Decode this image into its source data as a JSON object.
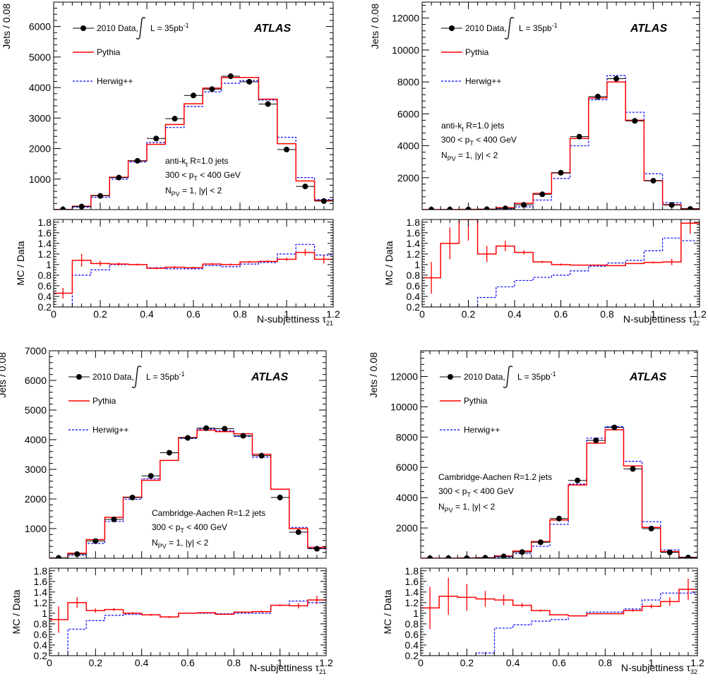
{
  "page": {
    "bg": "#ffffff"
  },
  "colors": {
    "data": "#000000",
    "pythia": "#ff0000",
    "herwig": "#0000ff"
  },
  "labels": {
    "atlas": "ATLAS",
    "data_legend_prefix": "2010 Data,",
    "data_legend_lumi": "L = 35pb",
    "data_legend_lumi_sup": "-1",
    "pythia": "Pythia",
    "herwig": "Herwig++",
    "jets_axis": "Jets / 0.08",
    "ratio_axis": "MC / Data",
    "x_axis_prefix": "N-subjettiness τ",
    "pt_pre": "300 < p",
    "pt_sub": "T",
    "pt_post": " < 400 GeV",
    "npv_pre": "N",
    "npv_sub": "PV",
    "npv_post": " = 1, |y| < 2"
  },
  "chart_data": [
    {
      "type": "line",
      "panel": "top-left",
      "x_sub": "21",
      "algo_pre": "anti-k",
      "algo_sub": "t",
      "algo_post": " R=1.0 jets",
      "xlim": [
        0,
        1.2
      ],
      "ylim": [
        0,
        6800
      ],
      "yticks": [
        1000,
        2000,
        3000,
        4000,
        5000,
        6000
      ],
      "ratio_ylim": [
        0.2,
        1.85
      ],
      "ratio_yticks": [
        0.2,
        0.4,
        0.6,
        0.8,
        1,
        1.2,
        1.4,
        1.6,
        1.8
      ],
      "xticks": [
        0,
        0.2,
        0.4,
        0.6,
        0.8,
        1,
        1.2
      ],
      "bin_edges": [
        0,
        0.08,
        0.16,
        0.24,
        0.32,
        0.4,
        0.48,
        0.56,
        0.64,
        0.72,
        0.8,
        0.88,
        0.96,
        1.04,
        1.12,
        1.2
      ],
      "series": [
        {
          "name": "2010 Data",
          "values": [
            5,
            100,
            450,
            1050,
            1600,
            2330,
            2980,
            3740,
            3950,
            4370,
            4190,
            3460,
            1970,
            760,
            280
          ]
        },
        {
          "name": "Pythia",
          "values": [
            5,
            110,
            460,
            1060,
            1600,
            2140,
            2790,
            3470,
            3980,
            4330,
            4330,
            3620,
            2160,
            940,
            300
          ]
        },
        {
          "name": "Herwig++",
          "values": [
            3,
            80,
            400,
            1000,
            1560,
            2200,
            2690,
            3380,
            3860,
            4140,
            4230,
            3590,
            2370,
            1050,
            330
          ]
        }
      ],
      "ratio": [
        {
          "name": "Pythia",
          "values": [
            0.46,
            1.08,
            1.02,
            1.01,
            1.0,
            0.93,
            0.95,
            0.94,
            1.01,
            1.0,
            1.05,
            1.06,
            1.1,
            1.23,
            1.1
          ],
          "errors": [
            0.1,
            0.12,
            0.05,
            0.03,
            0.02,
            0.02,
            0.02,
            0.02,
            0.02,
            0.02,
            0.02,
            0.02,
            0.03,
            0.06,
            0.08
          ]
        },
        {
          "name": "Herwig++",
          "values": [
            0.2,
            0.8,
            0.9,
            1.0,
            1.0,
            0.94,
            0.92,
            0.92,
            0.98,
            0.96,
            1.01,
            1.04,
            1.2,
            1.38,
            1.18
          ]
        }
      ]
    },
    {
      "type": "line",
      "panel": "top-right",
      "x_sub": "32",
      "algo_pre": "anti-k",
      "algo_sub": "t",
      "algo_post": " R=1.0 jets",
      "xlim": [
        0,
        1.2
      ],
      "ylim": [
        0,
        13000
      ],
      "yticks": [
        2000,
        4000,
        6000,
        8000,
        10000,
        12000
      ],
      "ratio_ylim": [
        0.2,
        1.85
      ],
      "ratio_yticks": [
        0.2,
        0.4,
        0.6,
        0.8,
        1,
        1.2,
        1.4,
        1.6,
        1.8
      ],
      "xticks": [
        0,
        0.2,
        0.4,
        0.6,
        0.8,
        1,
        1.2
      ],
      "bin_edges": [
        0,
        0.08,
        0.16,
        0.24,
        0.32,
        0.4,
        0.48,
        0.56,
        0.64,
        0.72,
        0.8,
        0.88,
        0.96,
        1.04,
        1.12,
        1.2
      ],
      "series": [
        {
          "name": "2010 Data",
          "values": [
            2,
            5,
            10,
            20,
            80,
            300,
            960,
            2310,
            4570,
            7080,
            8200,
            5560,
            1810,
            290,
            40
          ]
        },
        {
          "name": "Pythia",
          "values": [
            3,
            8,
            15,
            30,
            120,
            390,
            1010,
            2300,
            4460,
            7000,
            8000,
            5600,
            1820,
            310,
            55
          ]
        },
        {
          "name": "Herwig++",
          "values": [
            0,
            1,
            2,
            5,
            30,
            170,
            600,
            1950,
            4000,
            6880,
            8400,
            6100,
            2250,
            430,
            60
          ]
        }
      ],
      "ratio": [
        {
          "name": "Pythia",
          "values": [
            0.75,
            1.4,
            1.85,
            1.2,
            1.35,
            1.23,
            1.05,
            1.0,
            0.99,
            0.99,
            0.98,
            1.02,
            1.04,
            1.05,
            1.78
          ],
          "errors": [
            0.3,
            0.3,
            0.4,
            0.15,
            0.1,
            0.04,
            0.02,
            0.02,
            0.01,
            0.01,
            0.01,
            0.01,
            0.02,
            0.06,
            0.2
          ]
        },
        {
          "name": "Herwig++",
          "values": [
            0.2,
            0.2,
            0.2,
            0.38,
            0.58,
            0.7,
            0.76,
            0.8,
            0.88,
            0.97,
            1.03,
            1.08,
            1.26,
            1.5,
            1.45
          ]
        }
      ]
    },
    {
      "type": "line",
      "panel": "bottom-left",
      "x_sub": "21",
      "algo_pre": "Cambridge-Aachen R=1.2 jets",
      "algo_sub": "",
      "algo_post": "",
      "xlim": [
        0,
        1.2
      ],
      "ylim": [
        0,
        7000
      ],
      "yticks": [
        1000,
        2000,
        3000,
        4000,
        5000,
        6000,
        7000
      ],
      "ratio_ylim": [
        0.2,
        1.85
      ],
      "ratio_yticks": [
        0.2,
        0.4,
        0.6,
        0.8,
        1,
        1.2,
        1.4,
        1.6,
        1.8
      ],
      "xticks": [
        0,
        0.2,
        0.4,
        0.6,
        0.8,
        1,
        1.2
      ],
      "bin_edges": [
        0,
        0.08,
        0.16,
        0.24,
        0.32,
        0.4,
        0.48,
        0.56,
        0.64,
        0.72,
        0.8,
        0.88,
        0.96,
        1.04,
        1.12,
        1.2
      ],
      "series": [
        {
          "name": "2010 Data",
          "values": [
            10,
            140,
            580,
            1310,
            2050,
            2780,
            3560,
            4060,
            4390,
            4370,
            4130,
            3460,
            2050,
            880,
            320
          ]
        },
        {
          "name": "Pythia",
          "values": [
            10,
            170,
            630,
            1380,
            2060,
            2630,
            3300,
            4070,
            4320,
            4270,
            4200,
            3510,
            2330,
            1000,
            370
          ]
        },
        {
          "name": "Herwig++",
          "values": [
            5,
            100,
            500,
            1240,
            1990,
            2680,
            3300,
            4040,
            4360,
            4300,
            4110,
            3410,
            2330,
            1040,
            340
          ]
        }
      ],
      "ratio": [
        {
          "name": "Pythia",
          "values": [
            0.88,
            1.2,
            1.05,
            1.07,
            1.0,
            0.97,
            0.93,
            1.0,
            1.01,
            0.98,
            1.02,
            1.03,
            1.15,
            1.14,
            1.25
          ],
          "errors": [
            0.25,
            0.1,
            0.04,
            0.03,
            0.02,
            0.02,
            0.02,
            0.01,
            0.01,
            0.01,
            0.01,
            0.02,
            0.02,
            0.05,
            0.08
          ]
        },
        {
          "name": "Herwig++",
          "values": [
            0.2,
            0.7,
            0.86,
            0.96,
            0.98,
            0.97,
            0.93,
            1.0,
            1.0,
            0.99,
            1.0,
            1.0,
            1.15,
            1.23,
            1.2
          ]
        }
      ]
    },
    {
      "type": "line",
      "panel": "bottom-right",
      "x_sub": "32",
      "algo_pre": "Cambridge-Aachen R=1.2 jets",
      "algo_sub": "",
      "algo_post": "",
      "xlim": [
        0,
        1.2
      ],
      "ylim": [
        0,
        13700
      ],
      "yticks": [
        2000,
        4000,
        6000,
        8000,
        10000,
        12000
      ],
      "ratio_ylim": [
        0.2,
        1.85
      ],
      "ratio_yticks": [
        0.2,
        0.4,
        0.6,
        0.8,
        1,
        1.2,
        1.4,
        1.6,
        1.8
      ],
      "xticks": [
        0,
        0.2,
        0.4,
        0.6,
        0.8,
        1,
        1.2
      ],
      "bin_edges": [
        0,
        0.08,
        0.16,
        0.24,
        0.32,
        0.4,
        0.48,
        0.56,
        0.64,
        0.72,
        0.8,
        0.88,
        0.96,
        1.04,
        1.12,
        1.2
      ],
      "series": [
        {
          "name": "2010 Data",
          "values": [
            2,
            5,
            10,
            30,
            120,
            410,
            1060,
            2620,
            5140,
            7780,
            8640,
            5900,
            1960,
            390,
            45
          ]
        },
        {
          "name": "Pythia",
          "values": [
            3,
            8,
            15,
            35,
            150,
            480,
            1100,
            2530,
            4840,
            7600,
            8480,
            6100,
            2040,
            440,
            60
          ]
        },
        {
          "name": "Herwig++",
          "values": [
            0,
            1,
            2,
            10,
            60,
            300,
            790,
            2240,
            4900,
            7930,
            8690,
            6400,
            2420,
            550,
            70
          ]
        }
      ],
      "ratio": [
        {
          "name": "Pythia",
          "values": [
            1.1,
            1.32,
            1.3,
            1.27,
            1.25,
            1.15,
            1.05,
            0.97,
            0.95,
            0.99,
            0.99,
            1.05,
            1.13,
            1.22,
            1.45
          ],
          "errors": [
            0.4,
            0.35,
            0.25,
            0.15,
            0.1,
            0.04,
            0.02,
            0.01,
            0.01,
            0.01,
            0.01,
            0.02,
            0.04,
            0.08,
            0.2
          ]
        },
        {
          "name": "Herwig++",
          "values": [
            0.2,
            0.2,
            0.2,
            0.25,
            0.72,
            0.78,
            0.85,
            0.88,
            0.95,
            1.02,
            1.02,
            1.08,
            1.25,
            1.38,
            1.38
          ]
        }
      ]
    }
  ]
}
